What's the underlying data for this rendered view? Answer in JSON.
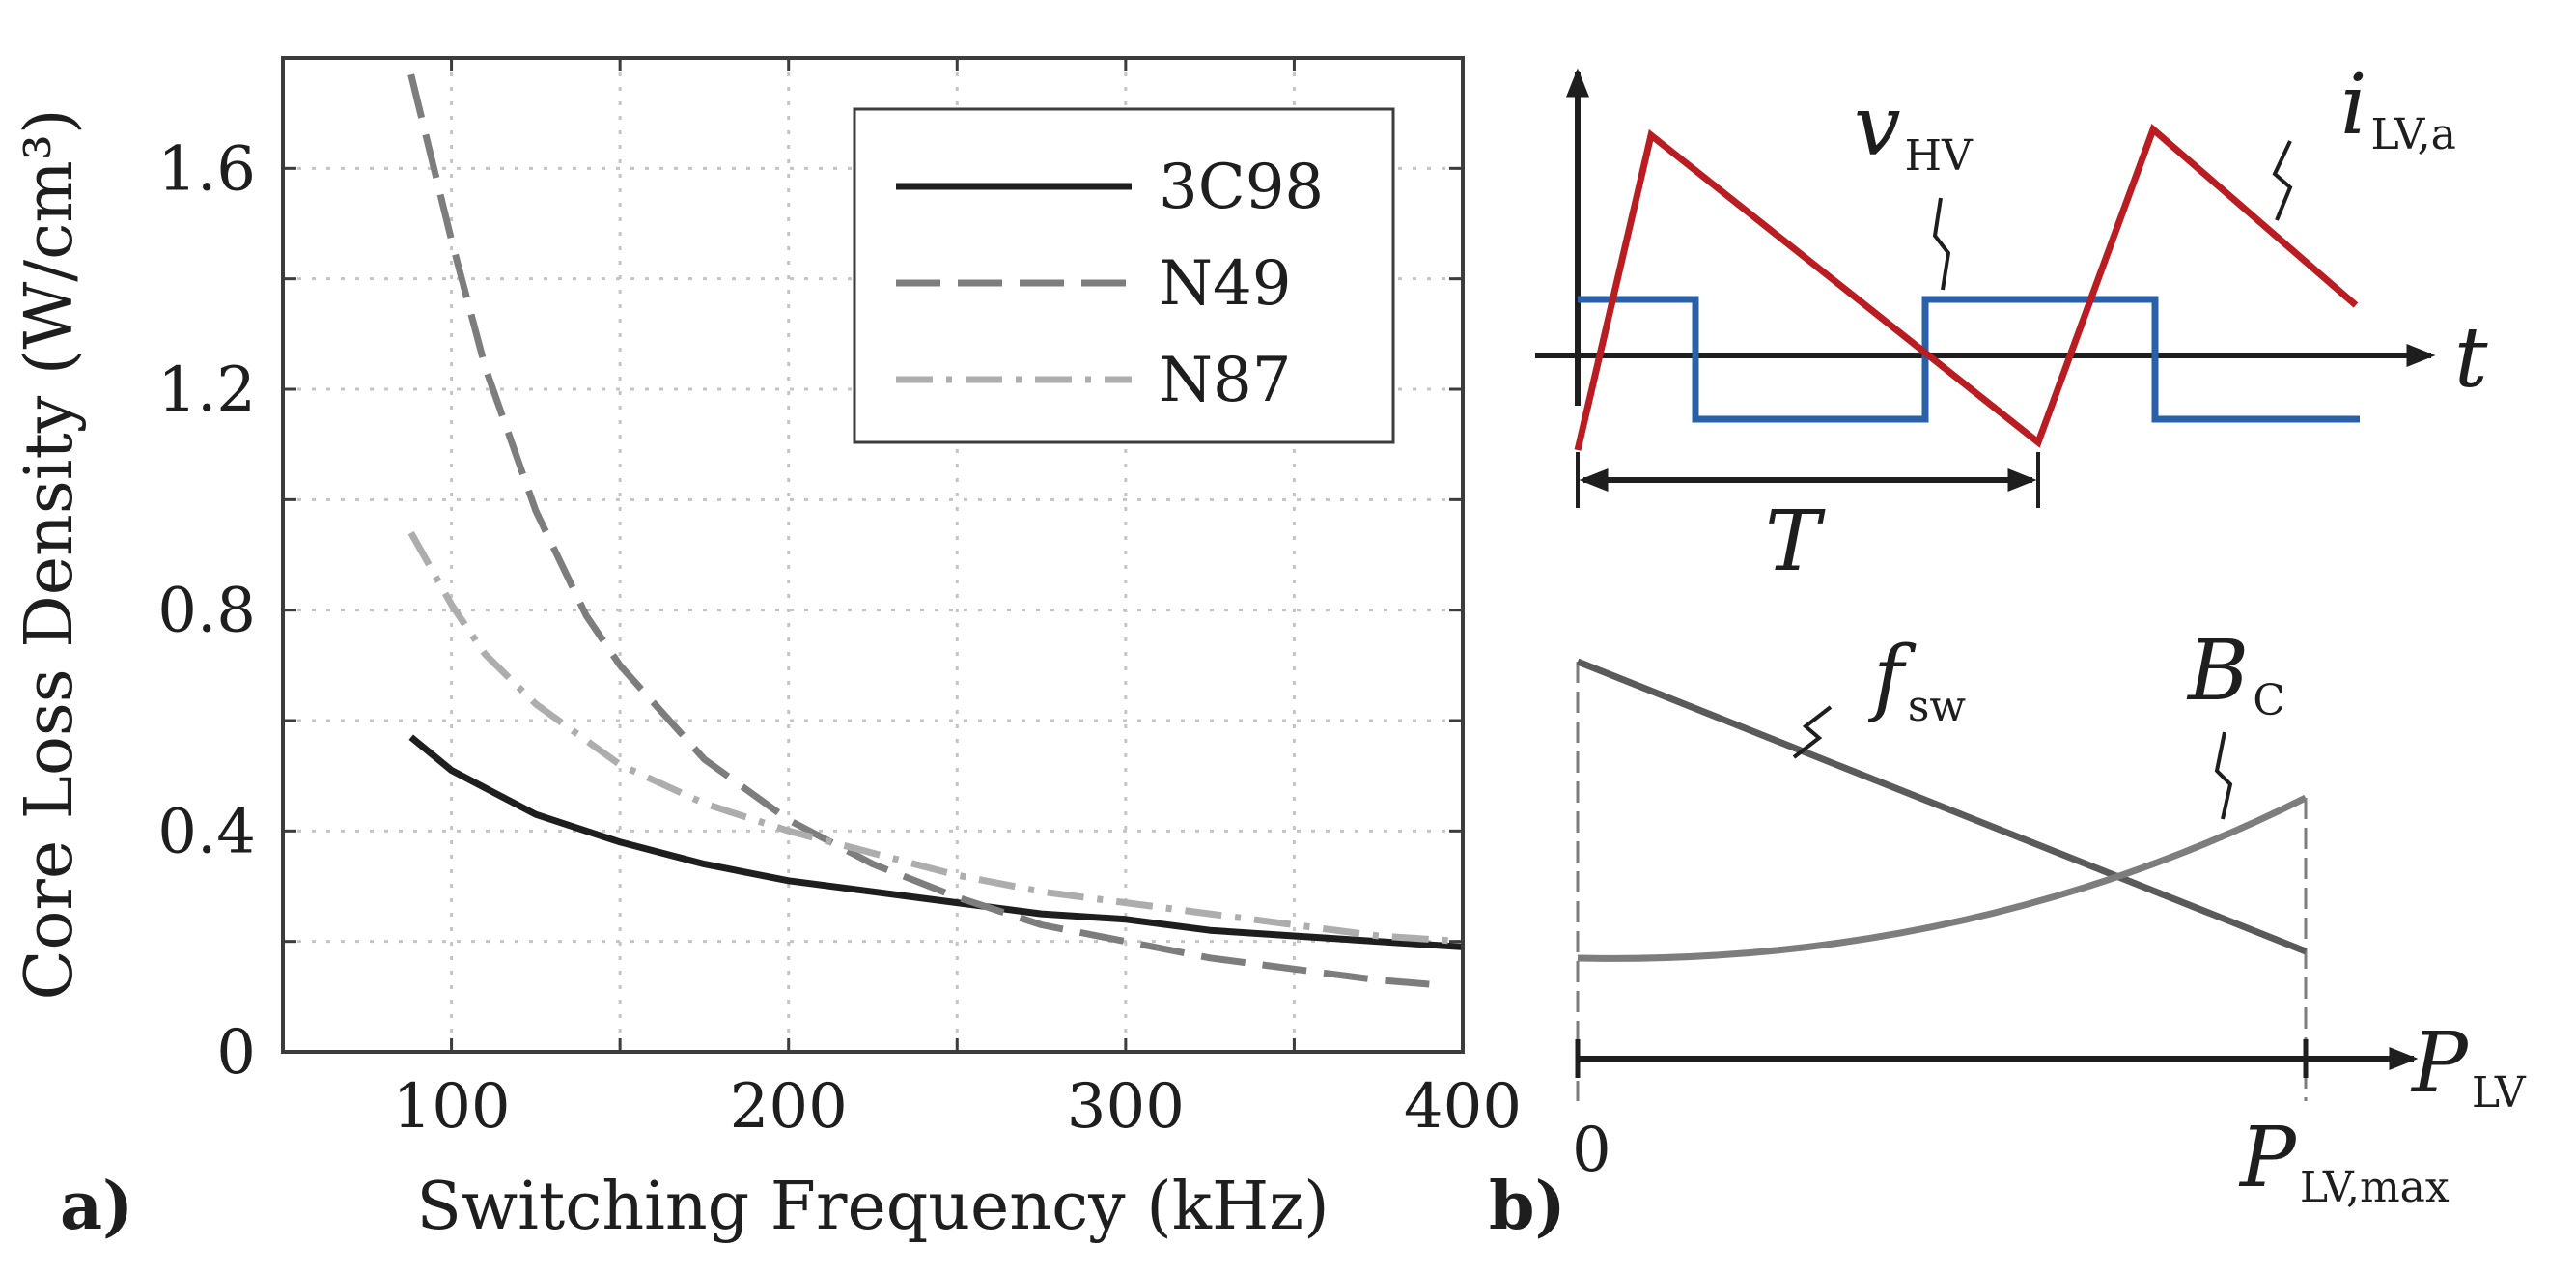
{
  "panel_a": {
    "label": "a)",
    "chart_data": {
      "type": "line",
      "title": "",
      "xlabel": "Switching Frequency (kHz)",
      "ylabel": "Core Loss Density (W/cm³)",
      "xlim": [
        50,
        400
      ],
      "ylim": [
        0,
        1.8
      ],
      "xticks": [
        100,
        200,
        300,
        400
      ],
      "xtick_labels": [
        "100",
        "200",
        "300",
        "400"
      ],
      "yticks": [
        0,
        0.4,
        0.8,
        1.2,
        1.6
      ],
      "ytick_labels": [
        "0",
        "0.4",
        "0.8",
        "1.2",
        "1.6"
      ],
      "x_minor_grid": [
        150,
        250,
        350
      ],
      "y_minor_grid": [
        0.2,
        0.6,
        1.0,
        1.4
      ],
      "grid": true,
      "legend_position": "top-right",
      "series": [
        {
          "name": "3C98",
          "style": "solid",
          "color": "#1e1e1e",
          "x": [
            88,
            100,
            125,
            150,
            175,
            200,
            225,
            250,
            275,
            300,
            325,
            350,
            375,
            400
          ],
          "y": [
            0.57,
            0.51,
            0.43,
            0.38,
            0.34,
            0.31,
            0.29,
            0.27,
            0.25,
            0.24,
            0.22,
            0.21,
            0.2,
            0.19
          ]
        },
        {
          "name": "N49",
          "style": "dashed",
          "color": "#7d7d7d",
          "x": [
            88,
            100,
            110,
            125,
            140,
            150,
            175,
            200,
            225,
            250,
            275,
            300,
            325,
            350,
            375,
            395
          ],
          "y": [
            1.77,
            1.47,
            1.24,
            0.98,
            0.79,
            0.7,
            0.53,
            0.42,
            0.34,
            0.28,
            0.23,
            0.2,
            0.17,
            0.15,
            0.13,
            0.12
          ]
        },
        {
          "name": "N87",
          "style": "dashdot",
          "color": "#adadad",
          "x": [
            88,
            100,
            110,
            125,
            150,
            175,
            200,
            225,
            250,
            275,
            300,
            325,
            350,
            375,
            400
          ],
          "y": [
            0.94,
            0.81,
            0.72,
            0.63,
            0.52,
            0.45,
            0.4,
            0.36,
            0.32,
            0.29,
            0.27,
            0.25,
            0.23,
            0.21,
            0.2
          ]
        }
      ]
    }
  },
  "panel_b": {
    "label": "b)",
    "top": {
      "voltage_label": "v",
      "voltage_sub": "HV",
      "current_label": "i",
      "current_sub": "LV,a",
      "time_label": "t",
      "period_label": "T",
      "voltage_color": "#2960a8",
      "current_color": "#b91d22"
    },
    "bottom": {
      "fsw_label": "f",
      "fsw_sub": "sw",
      "bc_label": "B",
      "bc_sub": "C",
      "axis_label": "P",
      "axis_sub": "LV",
      "zero_label": "0",
      "max_label": "P",
      "max_sub": "LV,max",
      "fsw_color": "#5a5a5a",
      "bc_color": "#7d7d7d"
    }
  },
  "colors": {
    "axis": "#1e1e1e",
    "frame": "#3c3c3c",
    "grid": "#c4c4c4"
  }
}
